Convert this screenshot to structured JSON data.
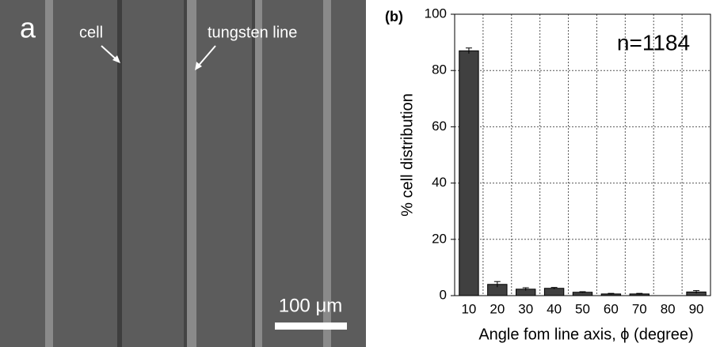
{
  "image": {
    "label": "a",
    "annotations": [
      "cell",
      "tungsten line"
    ],
    "scale_bar": "100 μm"
  },
  "chart_data": {
    "type": "bar",
    "panel_label": "(b)",
    "annotation": "n=1184",
    "y_label": "% cell distribution",
    "x_label": "Angle fom line axis, ϕ (degree)",
    "categories": [
      "10",
      "20",
      "30",
      "40",
      "50",
      "60",
      "70",
      "80",
      "90"
    ],
    "values": [
      87,
      4,
      2.3,
      2.6,
      1.2,
      0.6,
      0.6,
      0,
      1.3
    ],
    "errors": [
      1,
      1,
      0.5,
      0.3,
      0.2,
      0.2,
      0.2,
      0,
      0.5
    ],
    "color": "#404040",
    "ylim": [
      0,
      100
    ],
    "yticks": [
      0,
      20,
      40,
      60,
      80,
      100
    ],
    "grid": true
  }
}
